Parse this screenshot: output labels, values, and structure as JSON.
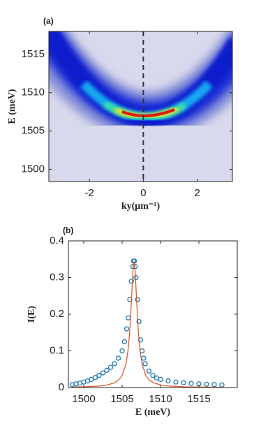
{
  "chart_data": [
    {
      "type": "heatmap",
      "panel_label": "(a)",
      "xlabel": "ky(μm⁻¹)",
      "ylabel": "E (meV)",
      "xlim": [
        -3.5,
        3.3
      ],
      "ylim": [
        1498.4,
        1518
      ],
      "xticks": [
        -2,
        0,
        2
      ],
      "yticks": [
        1500,
        1505,
        1510,
        1515
      ],
      "vline": 0
    },
    {
      "type": "scatter",
      "panel_label": "(b)",
      "xlabel": "E (meV)",
      "ylabel": "I(E)",
      "xlim": [
        1498,
        1520
      ],
      "ylim": [
        0,
        0.4
      ],
      "xticks": [
        1500,
        1505,
        1510,
        1515
      ],
      "yticks": [
        0,
        0.1,
        0.2,
        0.3,
        0.4
      ],
      "series": [
        {
          "type": "scatter",
          "color": "#1f77b4",
          "x": [
            1498.5,
            1499,
            1499.5,
            1500,
            1500.5,
            1501,
            1501.5,
            1502,
            1502.5,
            1503,
            1503.5,
            1504,
            1504.5,
            1505,
            1505.3,
            1505.6,
            1505.8,
            1506,
            1506.2,
            1506.4,
            1506.5,
            1506.6,
            1506.7,
            1506.8,
            1507,
            1507.2,
            1507.4,
            1507.6,
            1507.8,
            1508,
            1508.5,
            1509,
            1509.5,
            1510,
            1511,
            1512,
            1513,
            1514,
            1515,
            1516,
            1517,
            1518
          ],
          "values": [
            0.008,
            0.01,
            0.012,
            0.015,
            0.018,
            0.022,
            0.027,
            0.033,
            0.04,
            0.047,
            0.055,
            0.065,
            0.08,
            0.1,
            0.125,
            0.16,
            0.19,
            0.24,
            0.29,
            0.33,
            0.345,
            0.345,
            0.33,
            0.3,
            0.24,
            0.18,
            0.13,
            0.1,
            0.08,
            0.065,
            0.045,
            0.033,
            0.026,
            0.022,
            0.018,
            0.015,
            0.013,
            0.011,
            0.01,
            0.009,
            0.008,
            0.007
          ]
        },
        {
          "type": "line",
          "color": "#d9541e",
          "x": [
            1498.5,
            1500,
            1502,
            1503,
            1504,
            1504.5,
            1505,
            1505.5,
            1505.8,
            1506,
            1506.2,
            1506.4,
            1506.55,
            1506.7,
            1506.9,
            1507.1,
            1507.3,
            1507.6,
            1508.1,
            1508.6,
            1509.1,
            1510.1,
            1511.1,
            1513.1,
            1518
          ],
          "values": [
            0.0013,
            0.002,
            0.0041,
            0.0067,
            0.0128,
            0.0194,
            0.0325,
            0.0638,
            0.106,
            0.156,
            0.232,
            0.317,
            0.345,
            0.317,
            0.232,
            0.156,
            0.106,
            0.0638,
            0.0325,
            0.0194,
            0.0128,
            0.0067,
            0.0041,
            0.002,
            0.00066
          ]
        }
      ]
    }
  ]
}
